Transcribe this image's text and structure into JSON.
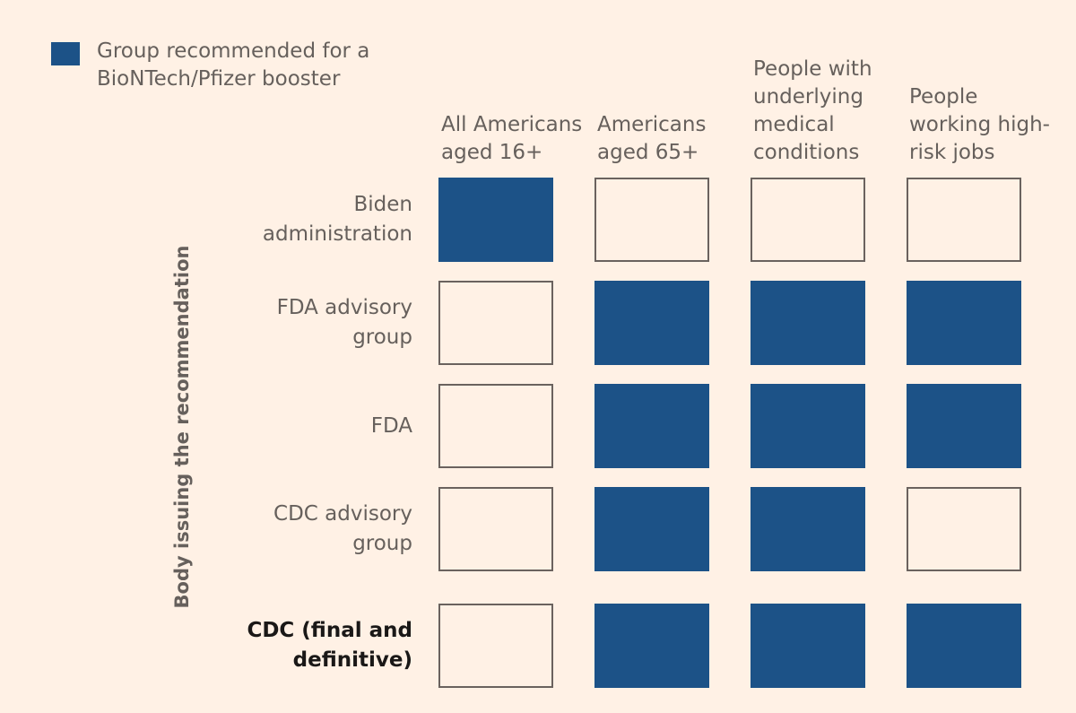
{
  "legend": {
    "label": "Group recommended for a BioNTech/Pfizer booster",
    "color": "#1c5287"
  },
  "chart_data": {
    "type": "table",
    "y_axis_title": "Body issuing the recommendation",
    "columns": [
      "All Americans aged 16+",
      "Americans aged 65+",
      "People with underlying medical conditions",
      "People working high-risk jobs"
    ],
    "rows": [
      {
        "label": "Biden administration",
        "emphasis": false,
        "values": [
          true,
          false,
          false,
          false
        ]
      },
      {
        "label": "FDA advisory group",
        "emphasis": false,
        "values": [
          false,
          true,
          true,
          true
        ]
      },
      {
        "label": "FDA",
        "emphasis": false,
        "values": [
          false,
          true,
          true,
          true
        ]
      },
      {
        "label": "CDC advisory group",
        "emphasis": false,
        "values": [
          false,
          true,
          true,
          false
        ]
      },
      {
        "label": "CDC (final and definitive)",
        "emphasis": true,
        "values": [
          false,
          true,
          true,
          true
        ]
      }
    ],
    "colors": {
      "recommended": "#1c5287",
      "background": "#fff1e5",
      "outline": "#6a625e"
    }
  }
}
